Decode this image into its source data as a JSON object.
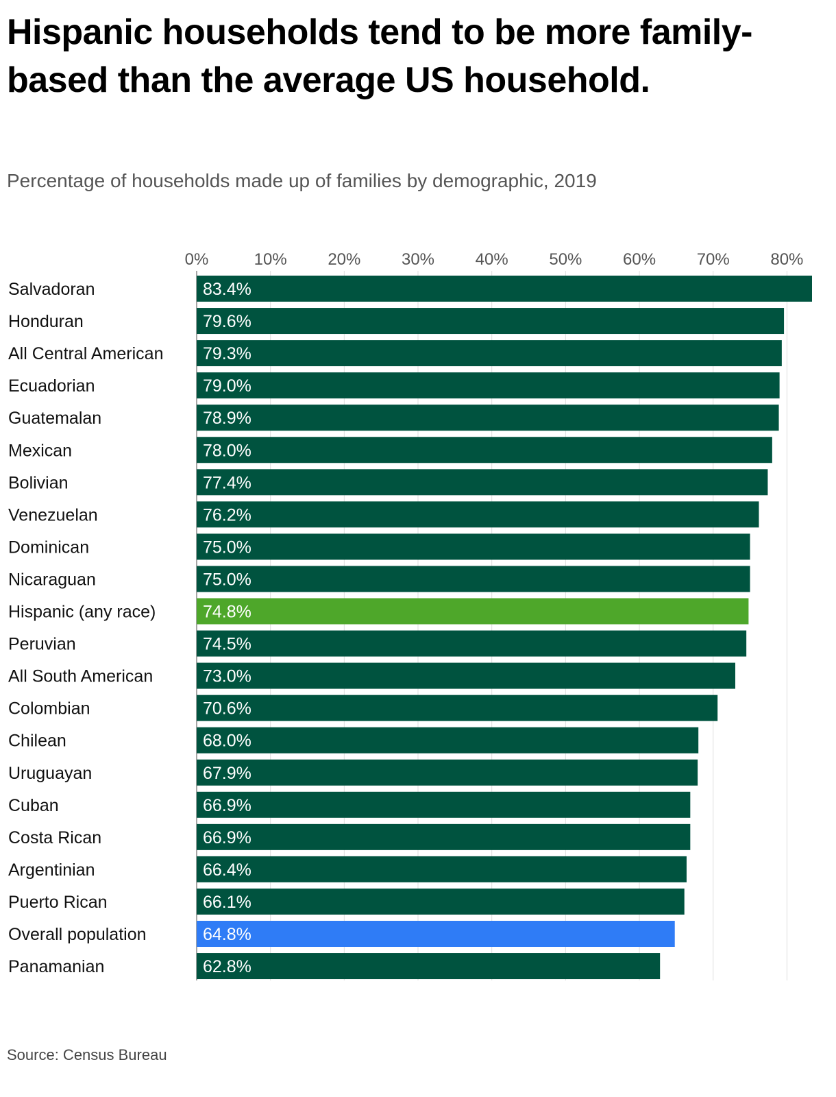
{
  "title": "Hispanic households tend to be more family-based than the average US household.",
  "subtitle": "Percentage of households made up of families by demographic, 2019",
  "source": "Source: Census Bureau",
  "colors": {
    "default_bar": "#00533F",
    "hispanic_bar": "#4EA72A",
    "overall_bar": "#2F7CF6",
    "grid": "#DDDDDD",
    "axis": "#888888"
  },
  "chart_data": {
    "type": "bar",
    "orientation": "horizontal",
    "title": "Hispanic households tend to be more family-based than the average US household.",
    "subtitle": "Percentage of households made up of families by demographic, 2019",
    "xlim": [
      0,
      83.4
    ],
    "x_ticks": [
      0,
      10,
      20,
      30,
      40,
      50,
      60,
      70,
      80
    ],
    "x_tick_labels": [
      "0%",
      "10%",
      "20%",
      "30%",
      "40%",
      "50%",
      "60%",
      "70%",
      "80%"
    ],
    "x_axis_position": "top",
    "grid": true,
    "categories": [
      "Salvadoran",
      "Honduran",
      "All Central American",
      "Ecuadorian",
      "Guatemalan",
      "Mexican",
      "Bolivian",
      "Venezuelan",
      "Dominican",
      "Nicaraguan",
      "Hispanic (any race)",
      "Peruvian",
      "All South American",
      "Colombian",
      "Chilean",
      "Uruguayan",
      "Cuban",
      "Costa Rican",
      "Argentinian",
      "Puerto Rican",
      "Overall population",
      "Panamanian"
    ],
    "values": [
      83.4,
      79.6,
      79.3,
      79.0,
      78.9,
      78.0,
      77.4,
      76.2,
      75.0,
      75.0,
      74.8,
      74.5,
      73.0,
      70.6,
      68.0,
      67.9,
      66.9,
      66.9,
      66.4,
      66.1,
      64.8,
      62.8
    ],
    "value_labels": [
      "83.4%",
      "79.6%",
      "79.3%",
      "79.0%",
      "78.9%",
      "78.0%",
      "77.4%",
      "76.2%",
      "75.0%",
      "75.0%",
      "74.8%",
      "74.5%",
      "73.0%",
      "70.6%",
      "68.0%",
      "67.9%",
      "66.9%",
      "66.9%",
      "66.4%",
      "66.1%",
      "64.8%",
      "62.8%"
    ],
    "highlights": {
      "Hispanic (any race)": "#4EA72A",
      "Overall population": "#2F7CF6"
    }
  }
}
